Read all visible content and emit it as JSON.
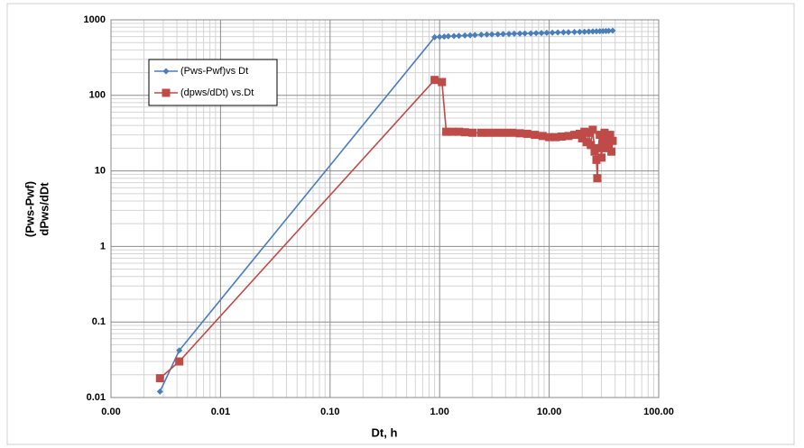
{
  "chart_data": {
    "type": "line",
    "log_x": true,
    "log_y": true,
    "grid": true,
    "legend": "upper left",
    "x_label": "Dt, h",
    "y_label": [
      "(Pws-Pwf)",
      "dPws/dDt"
    ],
    "xlim": [
      0.001,
      100
    ],
    "ylim": [
      0.01,
      1000
    ],
    "xticks": [
      {
        "value": 0.001,
        "label": "0.00"
      },
      {
        "value": 0.01,
        "label": "0.01"
      },
      {
        "value": 0.1,
        "label": "0.10"
      },
      {
        "value": 1,
        "label": "1.00"
      },
      {
        "value": 10,
        "label": "10.00"
      },
      {
        "value": 100,
        "label": "100.00"
      }
    ],
    "yticks": [
      0.01,
      0.1,
      1,
      10,
      100,
      1000
    ],
    "series": [
      {
        "name": "(Pws-Pwf)vs Dt",
        "color": "#4a7ebb",
        "marker": "diamond",
        "x": [
          0.0028,
          0.0042,
          0.9,
          1.0,
          1.1,
          1.2,
          1.35,
          1.5,
          1.7,
          1.9,
          2.1,
          2.4,
          2.7,
          3.0,
          3.4,
          3.8,
          4.3,
          4.8,
          5.4,
          6.0,
          6.8,
          7.6,
          8.5,
          9.5,
          10.7,
          12,
          13.5,
          15,
          17,
          19,
          21,
          23,
          25,
          27,
          29,
          31,
          33,
          35,
          38
        ],
        "values": [
          0.012,
          0.042,
          590,
          595,
          600,
          605,
          610,
          615,
          620,
          625,
          630,
          635,
          640,
          642,
          645,
          648,
          650,
          655,
          658,
          660,
          663,
          666,
          670,
          673,
          676,
          680,
          683,
          686,
          690,
          693,
          696,
          700,
          702,
          705,
          707,
          710,
          712,
          715,
          718
        ]
      },
      {
        "name": "(dpws/dDt) vs.Dt",
        "color": "#be4b48",
        "marker": "square",
        "x": [
          0.0028,
          0.0042,
          0.9,
          1.05,
          1.15,
          1.3,
          1.5,
          1.7,
          2.0,
          2.4,
          2.8,
          3.3,
          3.9,
          4.6,
          5.4,
          6.3,
          7.4,
          8.7,
          10,
          11.5,
          13,
          15,
          17,
          19,
          20,
          21,
          22,
          23,
          24,
          25,
          26,
          27,
          27.5,
          28,
          29,
          30,
          31,
          32,
          33,
          34,
          35,
          36,
          37,
          38
        ],
        "values": [
          0.018,
          0.03,
          160,
          150,
          33,
          33,
          33,
          32.5,
          32,
          32,
          32,
          32,
          32,
          32,
          31.5,
          31,
          30,
          29,
          28,
          28,
          28.5,
          29,
          30,
          31,
          27,
          33,
          24,
          32,
          22,
          35,
          18,
          14,
          8,
          20,
          30,
          15,
          25,
          32,
          20,
          28,
          22,
          30,
          18,
          25
        ]
      }
    ]
  }
}
